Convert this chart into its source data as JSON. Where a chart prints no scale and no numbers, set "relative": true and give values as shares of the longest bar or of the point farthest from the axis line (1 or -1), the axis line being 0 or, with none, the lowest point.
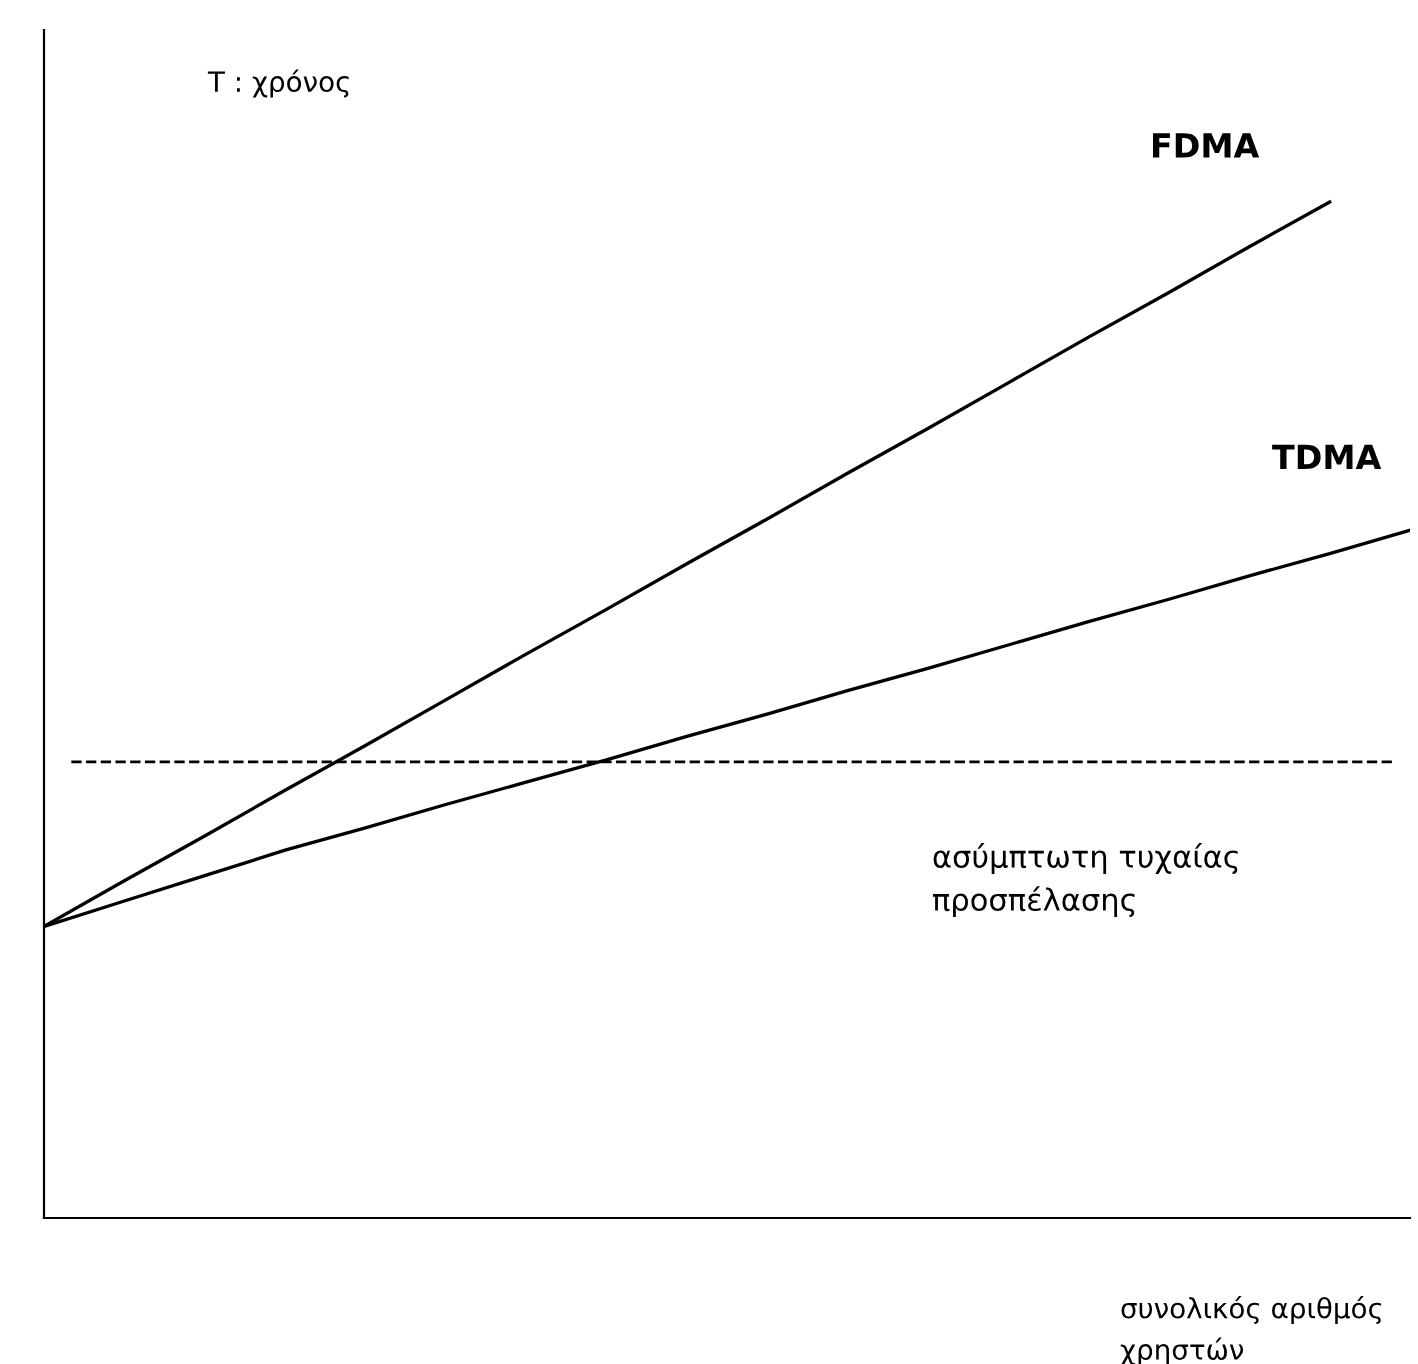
{
  "chart_data": {
    "type": "line",
    "relative": true,
    "xlabel": "συνολικός αριθμός\nχρηστών",
    "ylabel": "T : χρόνος",
    "categories": [
      null,
      null,
      null,
      null,
      null,
      null,
      null,
      null,
      null,
      null,
      null,
      null,
      null,
      null,
      null,
      null,
      null,
      null
    ],
    "series": [
      {
        "name": "FDMA",
        "color": "#000000",
        "values": [
          0.287,
          0.332,
          0.376,
          0.421,
          0.465,
          0.51,
          0.555,
          0.599,
          0.644,
          0.688,
          0.733,
          0.777,
          0.822,
          0.867,
          0.911,
          0.956,
          1,
          null
        ]
      },
      {
        "name": "TDMA",
        "color": "#000000",
        "values": [
          0.287,
          0.312,
          0.337,
          0.362,
          0.384,
          0.407,
          0.429,
          0.451,
          0.474,
          0.496,
          0.519,
          0.541,
          0.564,
          0.587,
          0.609,
          0.632,
          0.654,
          0.677
        ]
      }
    ],
    "ref_lines": [
      {
        "axis": "y",
        "value": 0.449,
        "label": "ασύμπτωτη τυχαίας\nπροσπέλασης",
        "line_style": "dashed",
        "color": "#000000"
      }
    ],
    "legend": false,
    "line_style": "solid",
    "marker": "none"
  }
}
